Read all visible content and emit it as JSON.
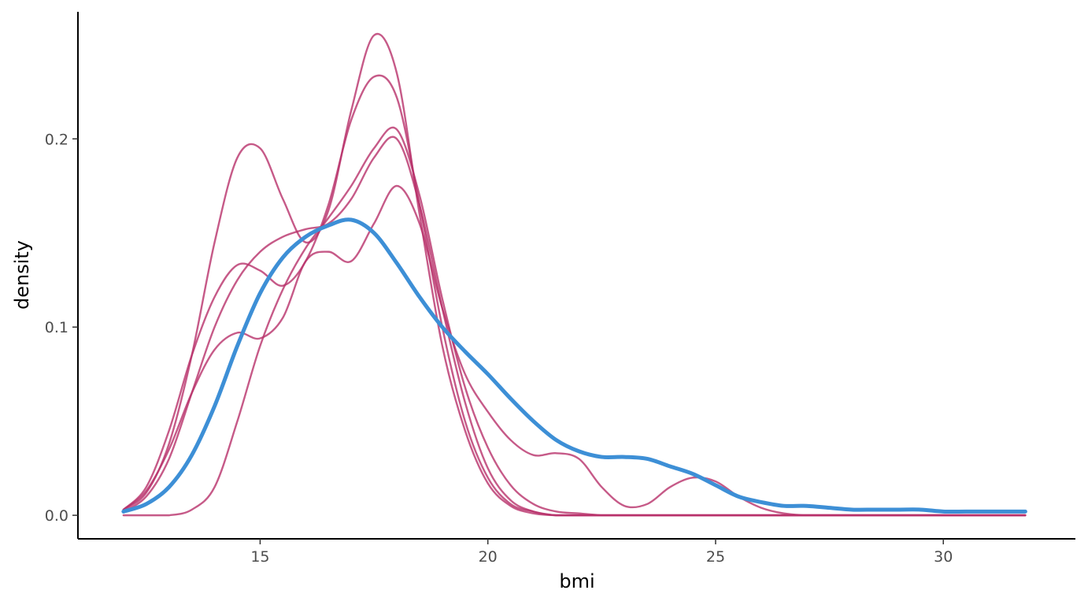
{
  "chart_data": {
    "type": "line",
    "title": "",
    "xlabel": "bmi",
    "ylabel": "density",
    "xlim": [
      11,
      32.9
    ],
    "ylim": [
      -0.0125,
      0.2675
    ],
    "x_ticks": [
      15,
      20,
      25,
      30
    ],
    "x_tick_labels": [
      "15",
      "20",
      "25",
      "30"
    ],
    "y_ticks": [
      0.0,
      0.1,
      0.2
    ],
    "y_tick_labels": [
      "0.0",
      "0.1",
      "0.2"
    ],
    "grid": false,
    "legend": "none",
    "colors": {
      "imputed": "#B8316A",
      "observed": "#3D8FD6",
      "axis": "#000000",
      "tick_text": "#4D4D4D"
    },
    "series": [
      {
        "role": "observed",
        "color": "#3D8FD6",
        "x": [
          12,
          12.5,
          13,
          13.5,
          14,
          14.5,
          15,
          15.5,
          16,
          16.5,
          17,
          17.5,
          18,
          18.5,
          19,
          19.5,
          20,
          20.5,
          21,
          21.5,
          22,
          22.5,
          23,
          23.5,
          24,
          24.5,
          25,
          25.5,
          26,
          26.5,
          27,
          27.5,
          28,
          28.5,
          29,
          29.5,
          30,
          30.5,
          31,
          31.5,
          31.8
        ],
        "y": [
          0.002,
          0.006,
          0.015,
          0.032,
          0.058,
          0.09,
          0.118,
          0.137,
          0.148,
          0.154,
          0.157,
          0.15,
          0.134,
          0.116,
          0.1,
          0.087,
          0.075,
          0.062,
          0.05,
          0.04,
          0.034,
          0.031,
          0.031,
          0.03,
          0.026,
          0.022,
          0.016,
          0.01,
          0.007,
          0.005,
          0.005,
          0.004,
          0.003,
          0.003,
          0.003,
          0.003,
          0.002,
          0.002,
          0.002,
          0.002,
          0.002
        ]
      },
      {
        "role": "imputed",
        "color": "#B8316A",
        "x": [
          12,
          12.5,
          13,
          13.5,
          14,
          14.5,
          15,
          15.5,
          16,
          16.5,
          17,
          17.5,
          18,
          18.5,
          19,
          19.5,
          20,
          20.5,
          21,
          21.5,
          22,
          22.5,
          23,
          23.5,
          24,
          24.5,
          25,
          25.5,
          26,
          26.5,
          27,
          28,
          29,
          30,
          31,
          31.8
        ],
        "y": [
          0.003,
          0.012,
          0.038,
          0.085,
          0.145,
          0.19,
          0.195,
          0.168,
          0.145,
          0.162,
          0.215,
          0.255,
          0.235,
          0.16,
          0.09,
          0.045,
          0.017,
          0.005,
          0.001,
          0,
          0,
          0,
          0,
          0,
          0,
          0,
          0,
          0,
          0,
          0,
          0,
          0,
          0,
          0,
          0,
          0
        ]
      },
      {
        "role": "imputed",
        "color": "#B8316A",
        "x": [
          12,
          12.5,
          13,
          13.5,
          14,
          14.5,
          15,
          15.5,
          16,
          16.5,
          17,
          17.5,
          18,
          18.5,
          19,
          19.5,
          20,
          20.5,
          21,
          21.5,
          22,
          22.5,
          23,
          23.5,
          24,
          24.5,
          25,
          25.5,
          26,
          26.5,
          27,
          28,
          29,
          30,
          31,
          31.8
        ],
        "y": [
          0.003,
          0.015,
          0.045,
          0.085,
          0.116,
          0.133,
          0.13,
          0.122,
          0.135,
          0.165,
          0.21,
          0.233,
          0.222,
          0.165,
          0.1,
          0.05,
          0.02,
          0.006,
          0.002,
          0,
          0,
          0,
          0,
          0,
          0,
          0,
          0,
          0,
          0,
          0,
          0,
          0,
          0,
          0,
          0,
          0
        ]
      },
      {
        "role": "imputed",
        "color": "#B8316A",
        "x": [
          12,
          12.5,
          13,
          13.5,
          14,
          14.5,
          15,
          15.5,
          16,
          16.5,
          17,
          17.5,
          18,
          18.5,
          19,
          19.5,
          20,
          20.5,
          21,
          21.5,
          22,
          22.5,
          23,
          23.5,
          24,
          24.5,
          25,
          25.5,
          26,
          26.5,
          27,
          28,
          29,
          30,
          31,
          31.8
        ],
        "y": [
          0.002,
          0.01,
          0.03,
          0.065,
          0.1,
          0.125,
          0.14,
          0.148,
          0.152,
          0.155,
          0.168,
          0.19,
          0.2,
          0.165,
          0.11,
          0.06,
          0.025,
          0.008,
          0.002,
          0,
          0,
          0,
          0,
          0,
          0,
          0,
          0,
          0,
          0,
          0,
          0,
          0,
          0,
          0,
          0,
          0
        ]
      },
      {
        "role": "imputed",
        "color": "#B8316A",
        "x": [
          12,
          12.5,
          13,
          13.5,
          14,
          14.5,
          15,
          15.5,
          16,
          16.5,
          17,
          17.5,
          18,
          18.5,
          19,
          19.5,
          20,
          20.5,
          21,
          21.5,
          22,
          22.5,
          23,
          23.5,
          24,
          24.5,
          25,
          25.5,
          26,
          26.5,
          27,
          28,
          29,
          30,
          31,
          31.8
        ],
        "y": [
          0.0,
          0.0,
          0.0,
          0.003,
          0.015,
          0.05,
          0.09,
          0.12,
          0.142,
          0.158,
          0.175,
          0.195,
          0.205,
          0.17,
          0.115,
          0.068,
          0.036,
          0.016,
          0.006,
          0.002,
          0.001,
          0,
          0,
          0,
          0,
          0,
          0,
          0,
          0,
          0,
          0,
          0,
          0,
          0,
          0,
          0
        ]
      },
      {
        "role": "imputed",
        "color": "#B8316A",
        "x": [
          12,
          12.5,
          13,
          13.5,
          14,
          14.5,
          15,
          15.5,
          16,
          16.5,
          17,
          17.5,
          18,
          18.5,
          19,
          19.5,
          20,
          20.5,
          21,
          21.5,
          22,
          22.5,
          23,
          23.5,
          24,
          24.5,
          25,
          25.5,
          26,
          26.5,
          27,
          28,
          29,
          30,
          31,
          31.8
        ],
        "y": [
          0.003,
          0.013,
          0.035,
          0.065,
          0.088,
          0.097,
          0.094,
          0.105,
          0.135,
          0.14,
          0.135,
          0.155,
          0.175,
          0.155,
          0.11,
          0.075,
          0.055,
          0.04,
          0.032,
          0.033,
          0.03,
          0.015,
          0.005,
          0.006,
          0.015,
          0.02,
          0.018,
          0.01,
          0.004,
          0.001,
          0.0,
          0,
          0,
          0,
          0,
          0
        ]
      }
    ]
  }
}
